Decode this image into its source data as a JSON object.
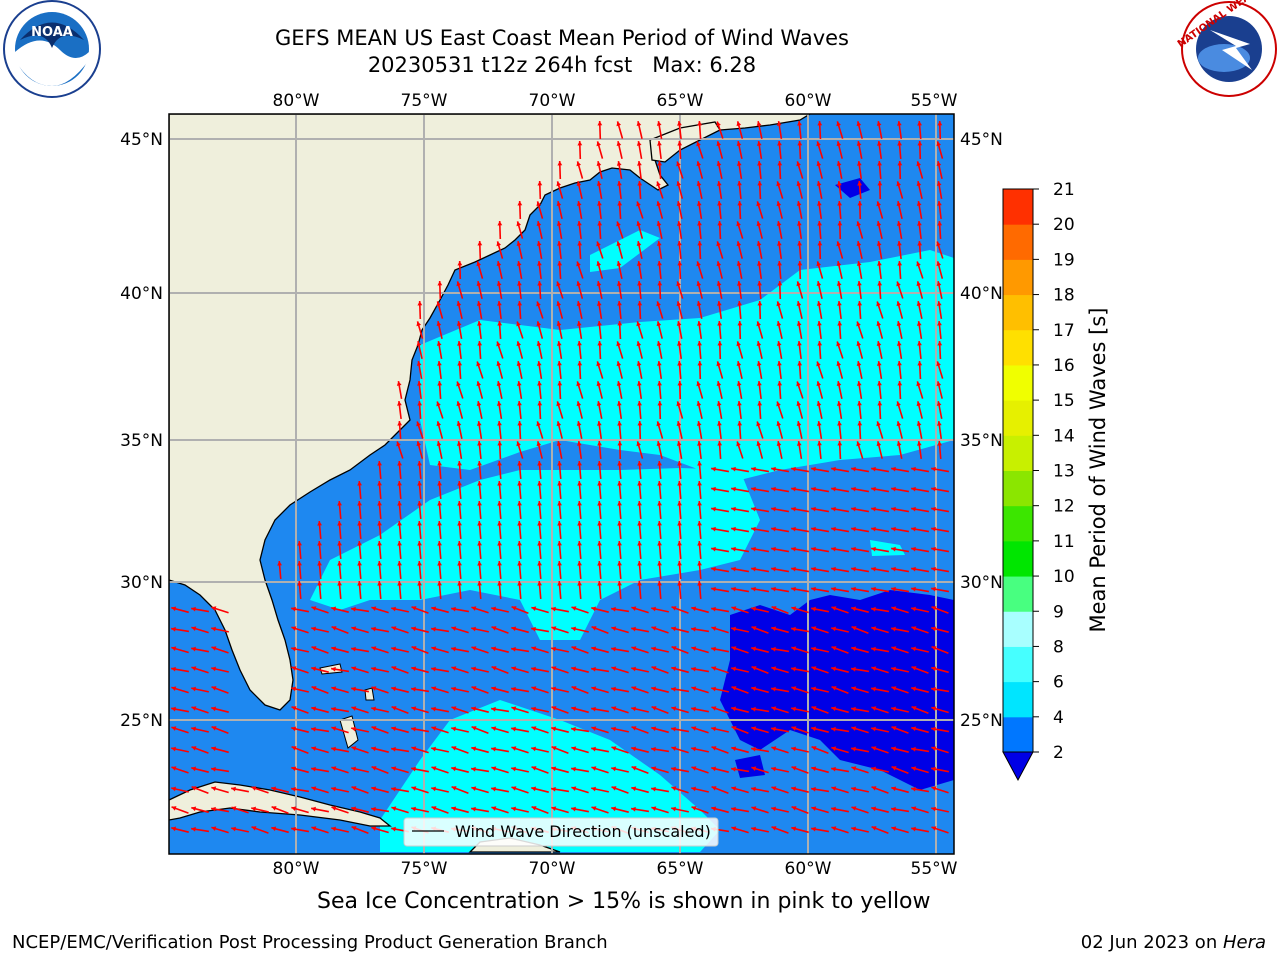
{
  "title": {
    "line1": "GEFS MEAN US East Coast Mean Period of Wind Waves",
    "line2": "20230531 t12z 264h fcst   Max: 6.28"
  },
  "logos": {
    "left": {
      "name": "noaa-logo",
      "text": "NOAA",
      "ring_text": "NATIONAL OCEANIC AND ATMOSPHERIC ADMINISTRATION · U.S. DEPARTMENT OF COMMERCE"
    },
    "right": {
      "name": "nws-logo",
      "ring_text": "NATIONAL WEATHER SERVICE"
    }
  },
  "map": {
    "lon_ticks_top": [
      "80°W",
      "75°W",
      "70°W",
      "65°W",
      "60°W",
      "55°W"
    ],
    "lon_ticks_bottom": [
      "80°W",
      "75°W",
      "70°W",
      "65°W",
      "60°W",
      "55°W"
    ],
    "lat_ticks_left": [
      "45°N",
      "40°N",
      "35°N",
      "30°N",
      "25°N"
    ],
    "lat_ticks_right": [
      "45°N",
      "40°N",
      "35°N",
      "30°N",
      "25°N"
    ],
    "legend_label": "Wind Wave Direction (unscaled)",
    "colors": {
      "land": "#efefdc",
      "ocean_2_4": "#1e88f0",
      "ocean_4_6": "#00ffff",
      "ocean_lt2": "#0000e6",
      "arrows": "#ff0000",
      "grid": "#b0b0b0"
    }
  },
  "colorbar": {
    "label": "Mean Period of Wind Waves [s]",
    "ticks": [
      "2",
      "4",
      "6",
      "8",
      "9",
      "10",
      "11",
      "12",
      "13",
      "14",
      "15",
      "16",
      "17",
      "18",
      "19",
      "20",
      "21"
    ],
    "colors": [
      "#0077ff",
      "#00e5ff",
      "#46ffff",
      "#a8ffff",
      "#48ff80",
      "#00e600",
      "#3ce600",
      "#8be600",
      "#c8f000",
      "#e6f000",
      "#f0ff00",
      "#ffe000",
      "#ffbf00",
      "#ff9900",
      "#ff6a00",
      "#ff3000",
      "#ff0000"
    ],
    "underflow_color": "#0000e6"
  },
  "notes": {
    "sea_ice": "Sea Ice Concentration > 15% is shown in pink to yellow"
  },
  "footer": {
    "left": "NCEP/EMC/Verification Post Processing Product Generation Branch",
    "date": "02 Jun 2023 on ",
    "host": "Hera"
  }
}
